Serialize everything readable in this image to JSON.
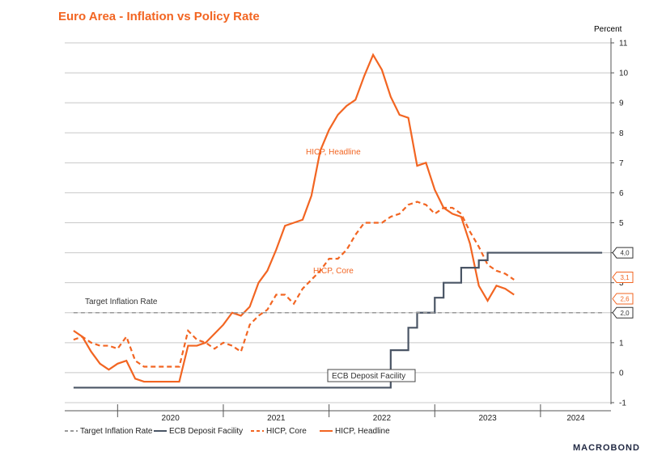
{
  "title": "Euro Area - Inflation vs Policy Rate",
  "unit_label": "Percent",
  "brand": "MACROBOND",
  "colors": {
    "headline": "#f26522",
    "core": "#f26522",
    "deposit": "#4a5565",
    "target": "#999999",
    "grid": "#c8c8c8"
  },
  "chart_data": {
    "type": "line",
    "title": "Euro Area - Inflation vs Policy Rate",
    "ylabel": "Percent",
    "ylim": [
      -1,
      11
    ],
    "yticks": [
      -1,
      0,
      1,
      2,
      3,
      4,
      5,
      6,
      7,
      8,
      9,
      10,
      11
    ],
    "xlim": [
      "2019-07",
      "2024-09"
    ],
    "x_tick_labels": [
      "2020",
      "2021",
      "2022",
      "2023",
      "2024"
    ],
    "grid": true,
    "legend_position": "bottom-left",
    "series": [
      {
        "name": "HICP, Headline",
        "style": "solid",
        "x": [
          "2019-08",
          "2019-09",
          "2019-10",
          "2019-11",
          "2019-12",
          "2020-01",
          "2020-02",
          "2020-03",
          "2020-04",
          "2020-05",
          "2020-06",
          "2020-07",
          "2020-08",
          "2020-09",
          "2020-10",
          "2020-11",
          "2020-12",
          "2021-01",
          "2021-02",
          "2021-03",
          "2021-04",
          "2021-05",
          "2021-06",
          "2021-07",
          "2021-08",
          "2021-09",
          "2021-10",
          "2021-11",
          "2021-12",
          "2022-01",
          "2022-02",
          "2022-03",
          "2022-04",
          "2022-05",
          "2022-06",
          "2022-07",
          "2022-08",
          "2022-09",
          "2022-10",
          "2022-11",
          "2022-12",
          "2023-01",
          "2023-02",
          "2023-03",
          "2023-04",
          "2023-05",
          "2023-06",
          "2023-07",
          "2023-08",
          "2023-09",
          "2023-10",
          "2023-11",
          "2023-12",
          "2024-01",
          "2024-02",
          "2024-03",
          "2024-04"
        ],
        "values": [
          1.4,
          1.2,
          0.7,
          0.3,
          0.1,
          0.3,
          0.4,
          -0.2,
          -0.3,
          -0.3,
          -0.3,
          -0.3,
          -0.3,
          0.9,
          0.9,
          1.0,
          1.3,
          1.6,
          2.0,
          1.9,
          2.2,
          3.0,
          3.4,
          4.1,
          4.9,
          5.0,
          5.1,
          5.9,
          7.4,
          8.1,
          8.6,
          8.9,
          9.1,
          9.9,
          10.6,
          10.1,
          9.2,
          8.6,
          8.5,
          6.9,
          7.0,
          6.1,
          5.5,
          5.3,
          5.2,
          4.3,
          2.9,
          2.4,
          2.9,
          2.8,
          2.6,
          null,
          null,
          null,
          null,
          null,
          null
        ]
      },
      {
        "name": "HICP, Core",
        "style": "dashed",
        "x": [
          "2019-08",
          "2019-09",
          "2019-10",
          "2019-11",
          "2019-12",
          "2020-01",
          "2020-02",
          "2020-03",
          "2020-04",
          "2020-05",
          "2020-06",
          "2020-07",
          "2020-08",
          "2020-09",
          "2020-10",
          "2020-11",
          "2020-12",
          "2021-01",
          "2021-02",
          "2021-03",
          "2021-04",
          "2021-05",
          "2021-06",
          "2021-07",
          "2021-08",
          "2021-09",
          "2021-10",
          "2021-11",
          "2021-12",
          "2022-01",
          "2022-02",
          "2022-03",
          "2022-04",
          "2022-05",
          "2022-06",
          "2022-07",
          "2022-08",
          "2022-09",
          "2022-10",
          "2022-11",
          "2022-12",
          "2023-01",
          "2023-02",
          "2023-03",
          "2023-04",
          "2023-05",
          "2023-06",
          "2023-07",
          "2023-08",
          "2023-09",
          "2023-10",
          "2023-11",
          "2023-12",
          "2024-01",
          "2024-02",
          "2024-03",
          "2024-04"
        ],
        "values": [
          1.1,
          1.2,
          1.0,
          0.9,
          0.9,
          0.8,
          1.2,
          0.4,
          0.2,
          0.2,
          0.2,
          0.2,
          0.2,
          1.4,
          1.1,
          1.0,
          0.8,
          1.0,
          0.9,
          0.7,
          1.6,
          1.9,
          2.1,
          2.6,
          2.6,
          2.3,
          2.8,
          3.1,
          3.4,
          3.8,
          3.8,
          4.1,
          4.6,
          5.0,
          5.0,
          5.0,
          5.2,
          5.3,
          5.6,
          5.7,
          5.6,
          5.3,
          5.5,
          5.5,
          5.3,
          4.7,
          4.2,
          3.6,
          3.4,
          3.3,
          3.1,
          null,
          null,
          null,
          null,
          null,
          null
        ]
      },
      {
        "name": "ECB Deposit Facility",
        "style": "solid",
        "x": [
          "2019-08",
          "2022-07",
          "2022-08",
          "2022-09",
          "2022-10",
          "2022-11",
          "2022-12",
          "2023-01",
          "2023-02",
          "2023-03",
          "2023-04",
          "2023-05",
          "2023-06",
          "2023-07",
          "2023-08",
          "2023-09",
          "2023-10",
          "2023-11",
          "2023-12",
          "2024-01",
          "2024-02",
          "2024-03",
          "2024-04",
          "2024-05",
          "2024-06",
          "2024-07",
          "2024-08"
        ],
        "values": [
          -0.5,
          -0.5,
          0.75,
          0.75,
          1.5,
          2.0,
          2.0,
          2.5,
          3.0,
          3.0,
          3.5,
          3.5,
          3.75,
          4.0,
          4.0,
          4.0,
          4.0,
          4.0,
          4.0,
          4.0,
          4.0,
          4.0,
          4.0,
          4.0,
          4.0,
          4.0,
          4.0
        ]
      },
      {
        "name": "Target Inflation Rate",
        "style": "dashed",
        "x": [
          "2019-08",
          "2024-08"
        ],
        "values": [
          2.0,
          2.0
        ]
      }
    ],
    "annotations": [
      {
        "text": "HICP, Headline",
        "series": "HICP, Headline"
      },
      {
        "text": "HICP, Core",
        "series": "HICP, Core"
      },
      {
        "text": "Target Inflation Rate",
        "series": "Target Inflation Rate"
      },
      {
        "text": "ECB Deposit Facility",
        "series": "ECB Deposit Facility"
      }
    ],
    "end_flags": [
      {
        "text": "4,0",
        "value": 4.0,
        "series": "ECB Deposit Facility"
      },
      {
        "text": "3,1",
        "value": 3.1,
        "series": "HICP, Core"
      },
      {
        "text": "2,6",
        "value": 2.6,
        "series": "HICP, Headline"
      },
      {
        "text": "2,0",
        "value": 2.0,
        "series": "Target Inflation Rate"
      }
    ],
    "legend": [
      {
        "text": "Target Inflation Rate",
        "series": "Target Inflation Rate"
      },
      {
        "text": "ECB Deposit Facility",
        "series": "ECB Deposit Facility"
      },
      {
        "text": "HICP, Core",
        "series": "HICP, Core"
      },
      {
        "text": "HICP, Headline",
        "series": "HICP, Headline"
      }
    ]
  }
}
